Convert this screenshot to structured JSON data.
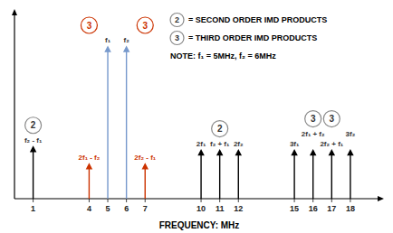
{
  "chart_data": {
    "type": "stem",
    "xlabel": "FREQUENCY: MHz",
    "xlim": [
      0,
      19.8
    ],
    "ylim": [
      0,
      1.1
    ],
    "xticks": [
      1,
      4,
      5,
      6,
      7,
      10,
      11,
      12,
      15,
      16,
      17,
      18
    ],
    "tick_labels": "x",
    "x": [
      1,
      4,
      5,
      6,
      7,
      10,
      11,
      12,
      15,
      16,
      17,
      18
    ],
    "values": [
      0.3,
      0.2,
      0.88,
      0.88,
      0.2,
      0.28,
      0.28,
      0.28,
      0.28,
      0.28,
      0.28,
      0.28
    ],
    "colors": [
      "#000000",
      "#cc3300",
      "#7799cc",
      "#7799cc",
      "#cc3300",
      "#000000",
      "#000000",
      "#000000",
      "#000000",
      "#000000",
      "#000000",
      "#000000"
    ],
    "point_labels": [
      "f₂ - f₁",
      "2f₁ - f₂",
      "f₁",
      "f₂",
      "2f₂ - f₁",
      "2f₁",
      "f₂ + f₁",
      "2f₂",
      "3f₁",
      "2f₁ + f₂",
      "2f₂ + f₁",
      "3f₂"
    ],
    "orders": [
      2,
      3,
      null,
      null,
      3,
      null,
      2,
      null,
      null,
      3,
      3,
      null
    ],
    "legend_items": [
      {
        "order": 2,
        "text": "= SECOND ORDER IMD PRODUCTS"
      },
      {
        "order": 3,
        "text": "= THIRD ORDER IMD PRODUCTS"
      }
    ],
    "note": "NOTE:  f₁ = 5MHz, f₂ = 6MHz"
  }
}
